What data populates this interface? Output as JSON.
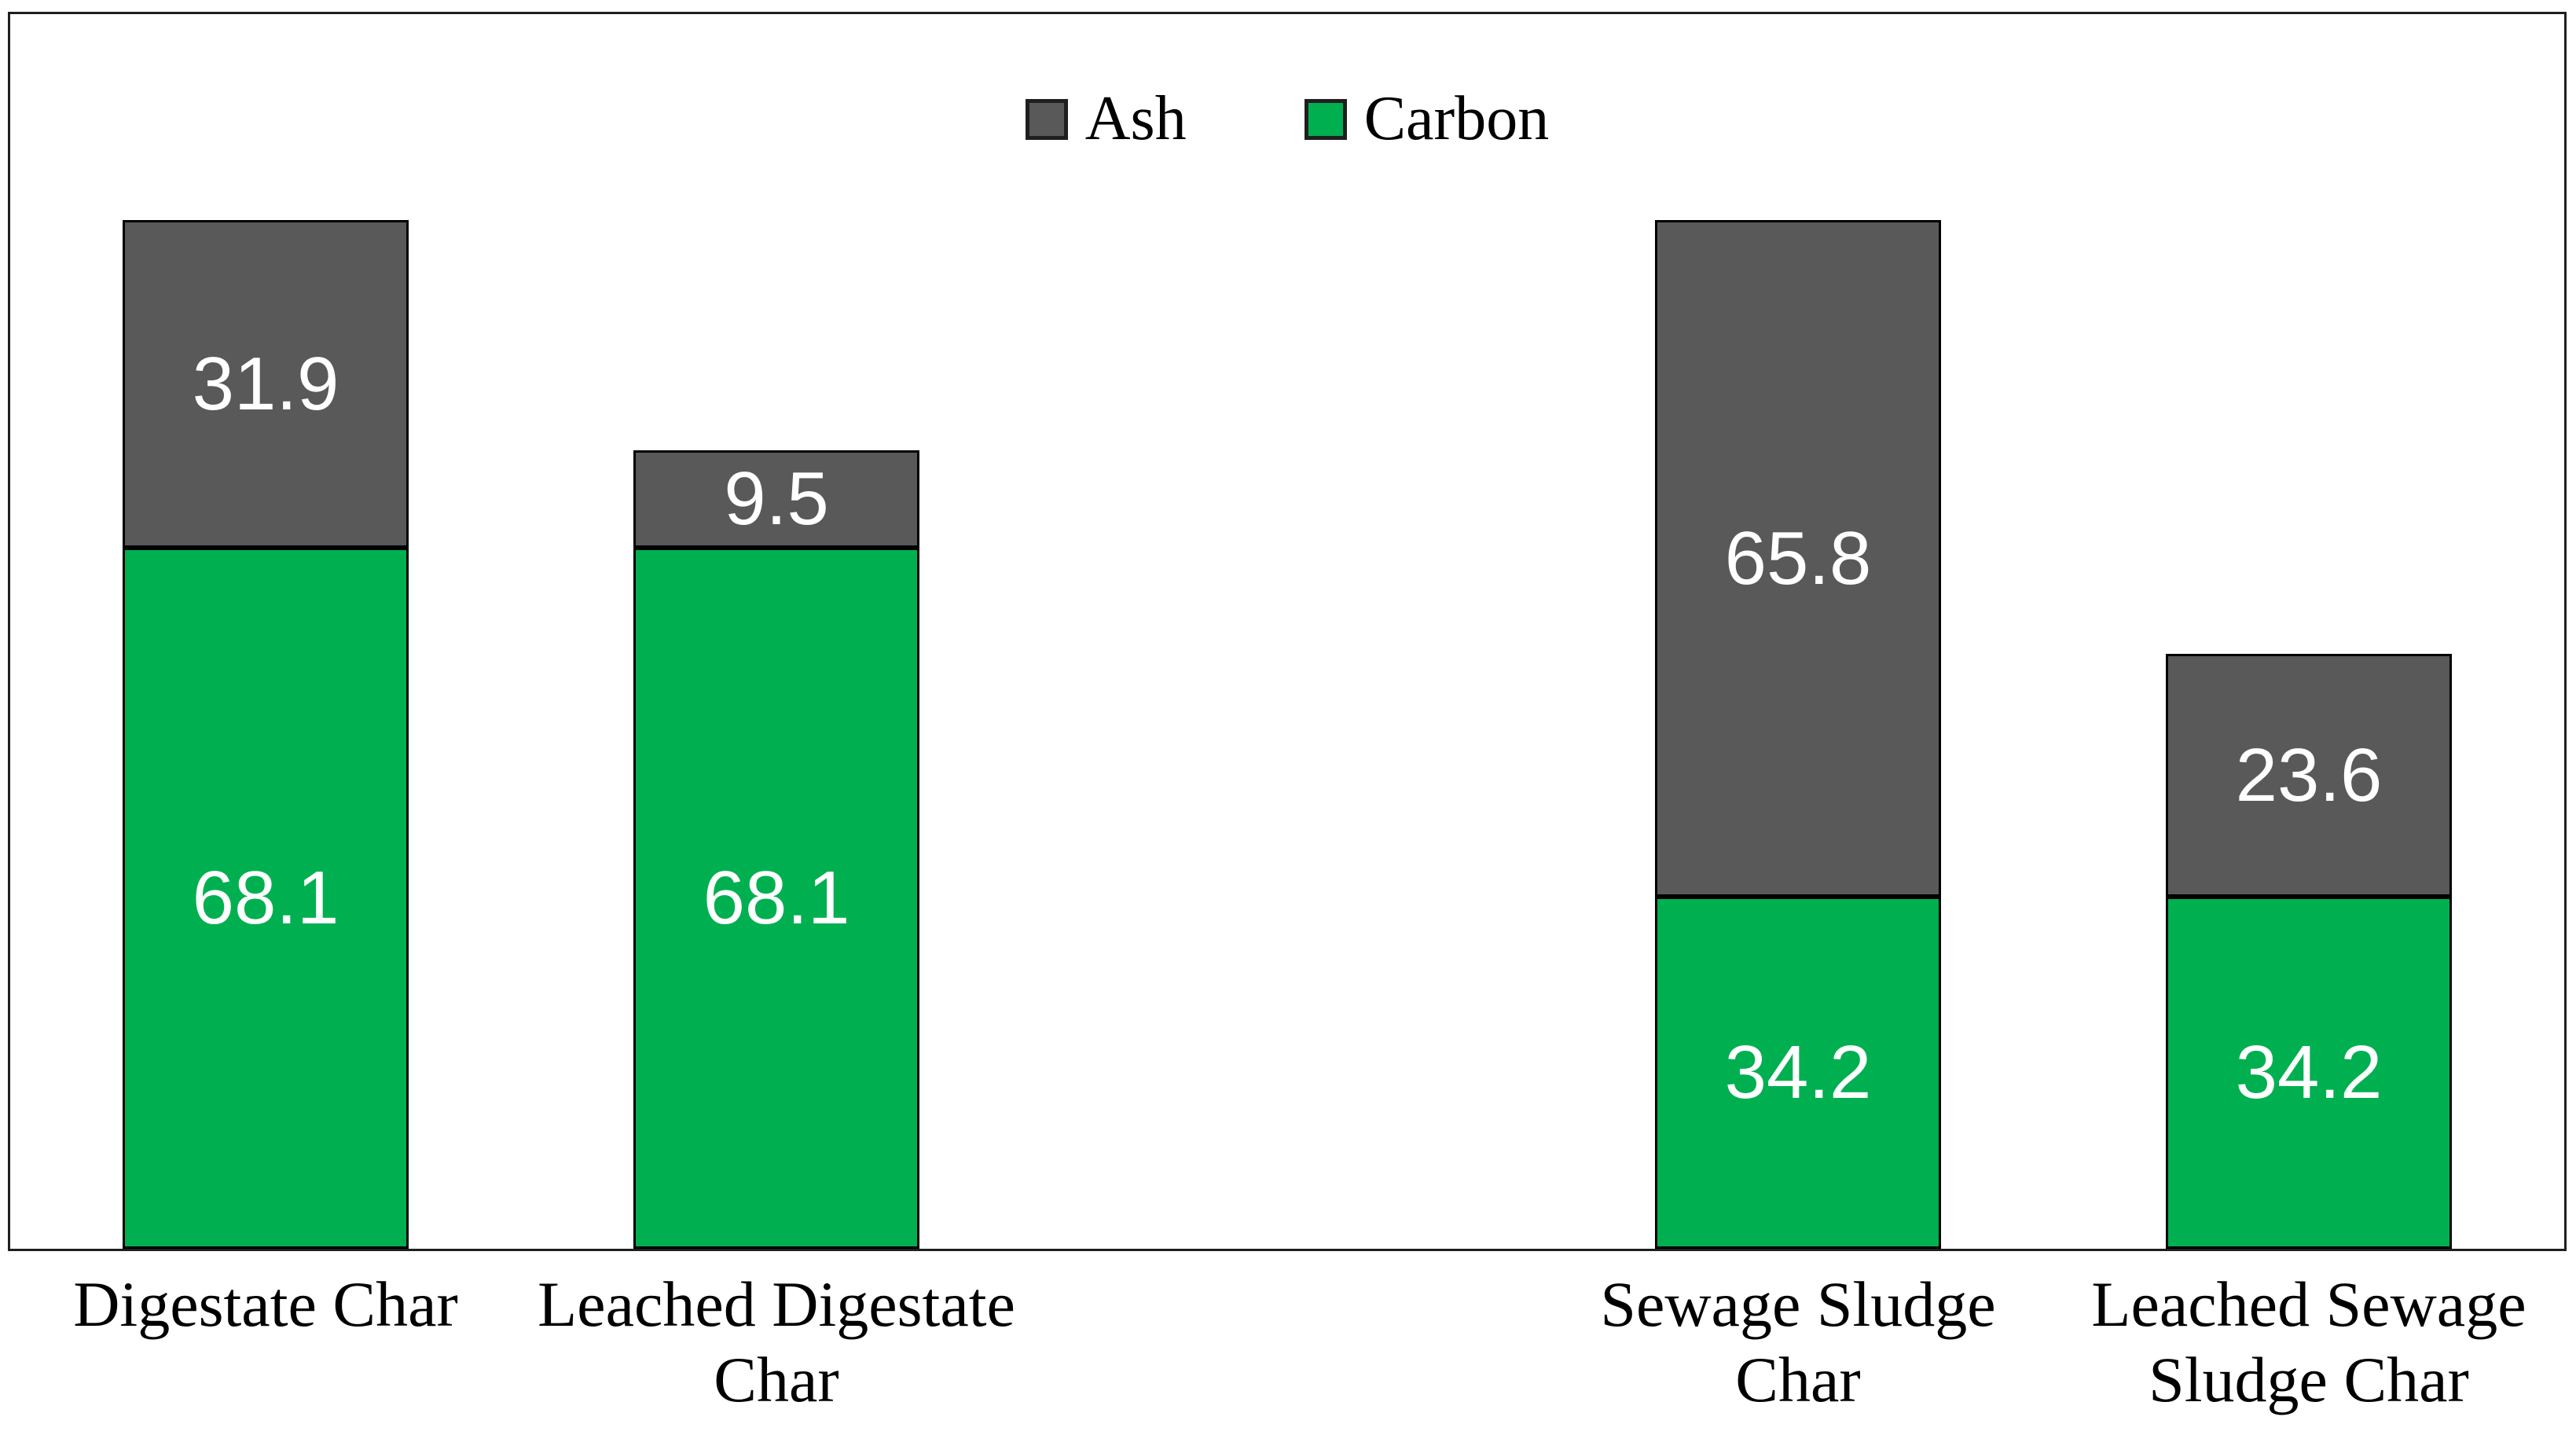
{
  "chart_data": {
    "type": "bar",
    "stacked": true,
    "title": "",
    "xlabel": "",
    "ylabel": "",
    "ylim": [
      0,
      120
    ],
    "grid": false,
    "categories": [
      "Digestate Char",
      "Leached Digestate Char",
      "Sewage Sludge Char",
      "Leached Sewage Sludge Char"
    ],
    "category_label_lines": [
      [
        "Digestate Char"
      ],
      [
        "Leached Digestate",
        "Char"
      ],
      [
        "Sewage Sludge",
        "Char"
      ],
      [
        "Leached Sewage",
        "Sludge Char"
      ]
    ],
    "series": [
      {
        "name": "Carbon",
        "color": "#00B050",
        "values": [
          68.1,
          68.1,
          34.2,
          34.2
        ]
      },
      {
        "name": "Ash",
        "color": "#595959",
        "values": [
          31.9,
          9.5,
          65.8,
          23.6
        ]
      }
    ],
    "value_label_color": "#FFFFFF",
    "legend": {
      "position": "top-center",
      "order": [
        "Ash",
        "Carbon"
      ]
    },
    "colors": {
      "plot_border": "#1f1f1f",
      "bar_border": "#000000",
      "background": "#ffffff",
      "text": "#000000"
    }
  }
}
